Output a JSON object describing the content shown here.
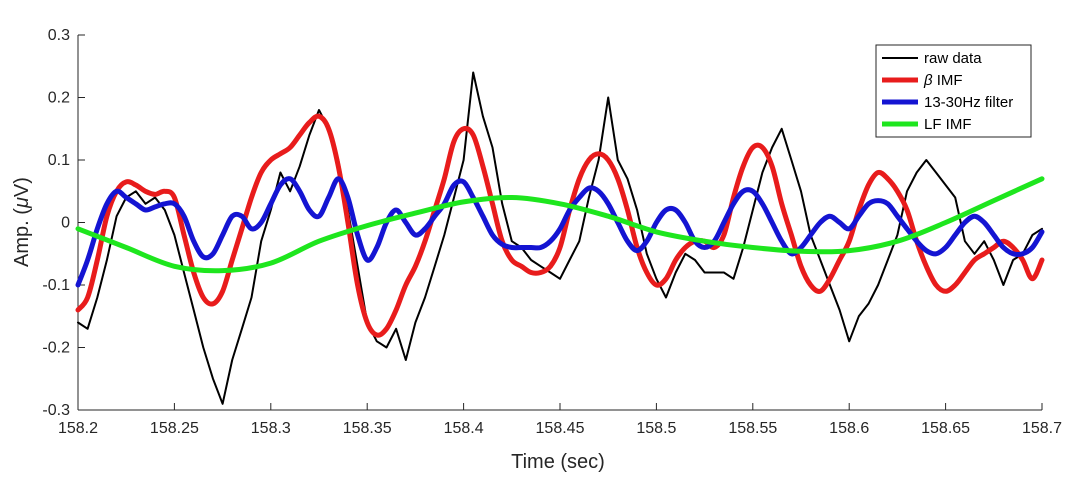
{
  "chart_data": {
    "type": "line",
    "xlabel": "Time (sec)",
    "ylabel_prefix": "Amp. (",
    "ylabel_symbol": "μ",
    "ylabel_suffix": "V)",
    "xlim": [
      158.2,
      158.7
    ],
    "ylim": [
      -0.3,
      0.3
    ],
    "xticks": [
      158.2,
      158.25,
      158.3,
      158.35,
      158.4,
      158.45,
      158.5,
      158.55,
      158.6,
      158.65,
      158.7
    ],
    "xtick_labels": [
      "158.2",
      "158.25",
      "158.3",
      "158.35",
      "158.4",
      "158.45",
      "158.5",
      "158.55",
      "158.6",
      "158.65",
      "158.7"
    ],
    "yticks": [
      -0.3,
      -0.2,
      -0.1,
      0,
      0.1,
      0.2,
      0.3
    ],
    "ytick_labels": [
      "-0.3",
      "-0.2",
      "-0.1",
      "0",
      "0.1",
      "0.2",
      "0.3"
    ],
    "grid": false,
    "legend_position": "top-right",
    "series": [
      {
        "name": "raw data",
        "legend_symbol": "",
        "color": "#000000",
        "width": 2,
        "x": [
          158.2,
          158.205,
          158.21,
          158.215,
          158.22,
          158.225,
          158.23,
          158.235,
          158.24,
          158.245,
          158.25,
          158.255,
          158.26,
          158.265,
          158.27,
          158.275,
          158.28,
          158.285,
          158.29,
          158.295,
          158.3,
          158.305,
          158.31,
          158.315,
          158.32,
          158.325,
          158.33,
          158.335,
          158.34,
          158.345,
          158.35,
          158.355,
          158.36,
          158.365,
          158.37,
          158.375,
          158.38,
          158.385,
          158.39,
          158.395,
          158.4,
          158.405,
          158.41,
          158.415,
          158.42,
          158.425,
          158.43,
          158.435,
          158.44,
          158.445,
          158.45,
          158.455,
          158.46,
          158.465,
          158.47,
          158.475,
          158.48,
          158.485,
          158.49,
          158.495,
          158.5,
          158.505,
          158.51,
          158.515,
          158.52,
          158.525,
          158.53,
          158.535,
          158.54,
          158.545,
          158.55,
          158.555,
          158.56,
          158.565,
          158.57,
          158.575,
          158.58,
          158.585,
          158.59,
          158.595,
          158.6,
          158.605,
          158.61,
          158.615,
          158.62,
          158.625,
          158.63,
          158.635,
          158.64,
          158.645,
          158.65,
          158.655,
          158.66,
          158.665,
          158.67,
          158.675,
          158.68,
          158.685,
          158.69,
          158.695,
          158.7
        ],
        "values": [
          -0.16,
          -0.17,
          -0.12,
          -0.06,
          0.01,
          0.04,
          0.05,
          0.03,
          0.04,
          0.02,
          -0.02,
          -0.08,
          -0.14,
          -0.2,
          -0.25,
          -0.29,
          -0.22,
          -0.17,
          -0.12,
          -0.03,
          0.02,
          0.08,
          0.05,
          0.09,
          0.14,
          0.18,
          0.15,
          0.1,
          0.02,
          -0.07,
          -0.16,
          -0.19,
          -0.2,
          -0.17,
          -0.22,
          -0.16,
          -0.12,
          -0.07,
          -0.02,
          0.04,
          0.1,
          0.24,
          0.17,
          0.12,
          0.03,
          -0.03,
          -0.04,
          -0.06,
          -0.07,
          -0.08,
          -0.09,
          -0.06,
          -0.03,
          0.04,
          0.1,
          0.2,
          0.1,
          0.07,
          0.02,
          -0.05,
          -0.09,
          -0.12,
          -0.08,
          -0.05,
          -0.06,
          -0.08,
          -0.08,
          -0.08,
          -0.09,
          -0.04,
          0.02,
          0.08,
          0.12,
          0.15,
          0.1,
          0.05,
          -0.02,
          -0.06,
          -0.1,
          -0.14,
          -0.19,
          -0.15,
          -0.13,
          -0.1,
          -0.06,
          -0.02,
          0.05,
          0.08,
          0.1,
          0.08,
          0.06,
          0.04,
          -0.03,
          -0.05,
          -0.03,
          -0.06,
          -0.1,
          -0.06,
          -0.05,
          -0.02,
          -0.01
        ]
      },
      {
        "name": "IMF",
        "legend_symbol": "β",
        "color": "#e81c1c",
        "width": 5,
        "x": [
          158.2,
          158.205,
          158.21,
          158.215,
          158.22,
          158.225,
          158.23,
          158.235,
          158.24,
          158.245,
          158.25,
          158.255,
          158.26,
          158.265,
          158.27,
          158.275,
          158.28,
          158.285,
          158.29,
          158.295,
          158.3,
          158.305,
          158.31,
          158.315,
          158.32,
          158.325,
          158.33,
          158.335,
          158.34,
          158.345,
          158.35,
          158.355,
          158.36,
          158.365,
          158.37,
          158.375,
          158.38,
          158.385,
          158.39,
          158.395,
          158.4,
          158.405,
          158.41,
          158.415,
          158.42,
          158.425,
          158.43,
          158.435,
          158.44,
          158.445,
          158.45,
          158.455,
          158.46,
          158.465,
          158.47,
          158.475,
          158.48,
          158.485,
          158.49,
          158.495,
          158.5,
          158.505,
          158.51,
          158.515,
          158.52,
          158.525,
          158.53,
          158.535,
          158.54,
          158.545,
          158.55,
          158.555,
          158.56,
          158.565,
          158.57,
          158.575,
          158.58,
          158.585,
          158.59,
          158.595,
          158.6,
          158.605,
          158.61,
          158.615,
          158.62,
          158.625,
          158.63,
          158.635,
          158.64,
          158.645,
          158.65,
          158.655,
          158.66,
          158.665,
          158.67,
          158.675,
          158.68,
          158.685,
          158.69,
          158.695,
          158.7
        ],
        "values": [
          -0.14,
          -0.12,
          -0.06,
          0.01,
          0.05,
          0.065,
          0.06,
          0.05,
          0.045,
          0.05,
          0.04,
          -0.02,
          -0.08,
          -0.12,
          -0.13,
          -0.11,
          -0.06,
          -0.01,
          0.04,
          0.08,
          0.1,
          0.11,
          0.12,
          0.14,
          0.16,
          0.17,
          0.15,
          0.09,
          0.0,
          -0.1,
          -0.16,
          -0.18,
          -0.17,
          -0.14,
          -0.1,
          -0.07,
          -0.03,
          0.02,
          0.07,
          0.13,
          0.15,
          0.14,
          0.09,
          0.03,
          -0.03,
          -0.06,
          -0.07,
          -0.08,
          -0.08,
          -0.07,
          -0.04,
          0.02,
          0.07,
          0.1,
          0.11,
          0.1,
          0.07,
          0.02,
          -0.04,
          -0.08,
          -0.1,
          -0.09,
          -0.06,
          -0.04,
          -0.03,
          -0.03,
          -0.04,
          -0.02,
          0.04,
          0.09,
          0.12,
          0.12,
          0.09,
          0.03,
          -0.02,
          -0.07,
          -0.1,
          -0.11,
          -0.09,
          -0.06,
          -0.03,
          0.02,
          0.06,
          0.08,
          0.07,
          0.05,
          0.02,
          -0.03,
          -0.07,
          -0.1,
          -0.11,
          -0.1,
          -0.08,
          -0.06,
          -0.05,
          -0.04,
          -0.03,
          -0.04,
          -0.06,
          -0.09,
          -0.06
        ]
      },
      {
        "name": "13-30Hz filter",
        "legend_symbol": "",
        "color": "#1414d2",
        "width": 5,
        "x": [
          158.2,
          158.205,
          158.21,
          158.215,
          158.22,
          158.225,
          158.23,
          158.235,
          158.24,
          158.245,
          158.25,
          158.255,
          158.26,
          158.265,
          158.27,
          158.275,
          158.28,
          158.285,
          158.29,
          158.295,
          158.3,
          158.305,
          158.31,
          158.315,
          158.32,
          158.325,
          158.33,
          158.335,
          158.34,
          158.345,
          158.35,
          158.355,
          158.36,
          158.365,
          158.37,
          158.375,
          158.38,
          158.385,
          158.39,
          158.395,
          158.4,
          158.405,
          158.41,
          158.415,
          158.42,
          158.425,
          158.43,
          158.435,
          158.44,
          158.445,
          158.45,
          158.455,
          158.46,
          158.465,
          158.47,
          158.475,
          158.48,
          158.485,
          158.49,
          158.495,
          158.5,
          158.505,
          158.51,
          158.515,
          158.52,
          158.525,
          158.53,
          158.535,
          158.54,
          158.545,
          158.55,
          158.555,
          158.56,
          158.565,
          158.57,
          158.575,
          158.58,
          158.585,
          158.59,
          158.595,
          158.6,
          158.605,
          158.61,
          158.615,
          158.62,
          158.625,
          158.63,
          158.635,
          158.64,
          158.645,
          158.65,
          158.655,
          158.66,
          158.665,
          158.67,
          158.675,
          158.68,
          158.685,
          158.69,
          158.695,
          158.7
        ],
        "values": [
          -0.1,
          -0.06,
          -0.01,
          0.03,
          0.05,
          0.04,
          0.03,
          0.02,
          0.025,
          0.03,
          0.03,
          0.01,
          -0.03,
          -0.055,
          -0.05,
          -0.02,
          0.01,
          0.01,
          -0.01,
          0.0,
          0.03,
          0.06,
          0.07,
          0.05,
          0.02,
          0.01,
          0.04,
          0.07,
          0.04,
          -0.02,
          -0.06,
          -0.04,
          0.0,
          0.02,
          0.0,
          -0.02,
          -0.01,
          0.01,
          0.03,
          0.06,
          0.065,
          0.04,
          0.01,
          -0.02,
          -0.035,
          -0.04,
          -0.04,
          -0.04,
          -0.04,
          -0.03,
          -0.01,
          0.02,
          0.04,
          0.055,
          0.05,
          0.03,
          0.0,
          -0.03,
          -0.045,
          -0.03,
          0.0,
          0.02,
          0.02,
          0.0,
          -0.03,
          -0.04,
          -0.03,
          0.0,
          0.03,
          0.05,
          0.05,
          0.03,
          0.0,
          -0.03,
          -0.05,
          -0.04,
          -0.02,
          0.0,
          0.01,
          0.0,
          -0.01,
          0.01,
          0.03,
          0.035,
          0.03,
          0.01,
          -0.01,
          -0.03,
          -0.045,
          -0.05,
          -0.04,
          -0.02,
          0.0,
          0.01,
          0.0,
          -0.02,
          -0.04,
          -0.05,
          -0.05,
          -0.04,
          -0.015
        ]
      },
      {
        "name": "LF IMF",
        "legend_symbol": "",
        "color": "#1ee61e",
        "width": 5,
        "x": [
          158.2,
          158.225,
          158.25,
          158.275,
          158.3,
          158.325,
          158.35,
          158.375,
          158.4,
          158.425,
          158.45,
          158.475,
          158.5,
          158.525,
          158.55,
          158.575,
          158.6,
          158.625,
          158.65,
          158.675,
          158.7
        ],
        "values": [
          -0.01,
          -0.04,
          -0.07,
          -0.077,
          -0.065,
          -0.03,
          -0.005,
          0.015,
          0.033,
          0.04,
          0.03,
          0.01,
          -0.015,
          -0.03,
          -0.04,
          -0.046,
          -0.045,
          -0.03,
          0.0,
          0.035,
          0.07
        ]
      }
    ]
  }
}
